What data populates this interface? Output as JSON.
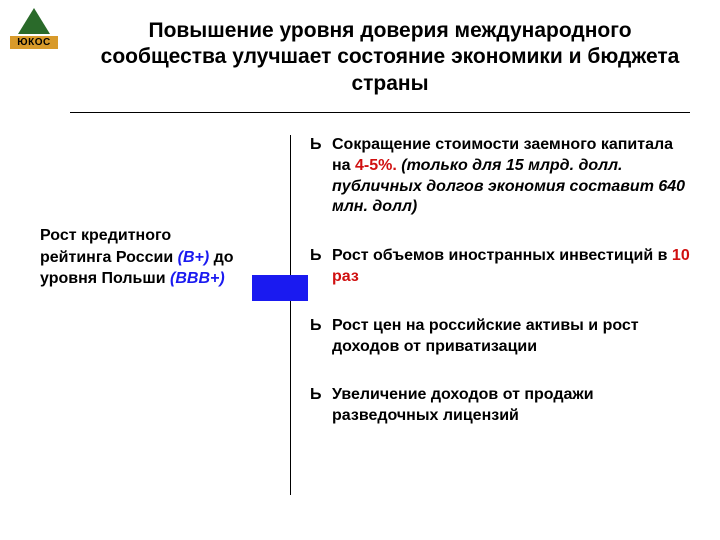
{
  "logo": {
    "text": "ЮКОС"
  },
  "title": "Повышение уровня доверия международного сообщества улучшает состояние экономики и бюджета страны",
  "left": {
    "line1": "Рост кредитного рейтинга России ",
    "bplus": "(B+)",
    "line2": " до уровня Польши ",
    "bbbplus": "(BBB+)"
  },
  "bullets": {
    "marker": "Ь",
    "b1a": "Сокращение стоимости заемного капитала на ",
    "b1b": "4-5%.",
    "b1c": " (только для 15 млрд. долл. публичных долгов экономия составит 640 млн. долл)",
    "b2a": "Рост объемов иностранных инвестиций в ",
    "b2b": "10 раз",
    "b3": "Рост цен на российские активы и рост доходов от приватизации",
    "b4": "Увеличение доходов от продажи разведочных лицензий"
  },
  "colors": {
    "accent_blue": "#1a1af0",
    "accent_red": "#d01010",
    "logo_green": "#2a6a2a",
    "logo_gold": "#d89a2a"
  }
}
